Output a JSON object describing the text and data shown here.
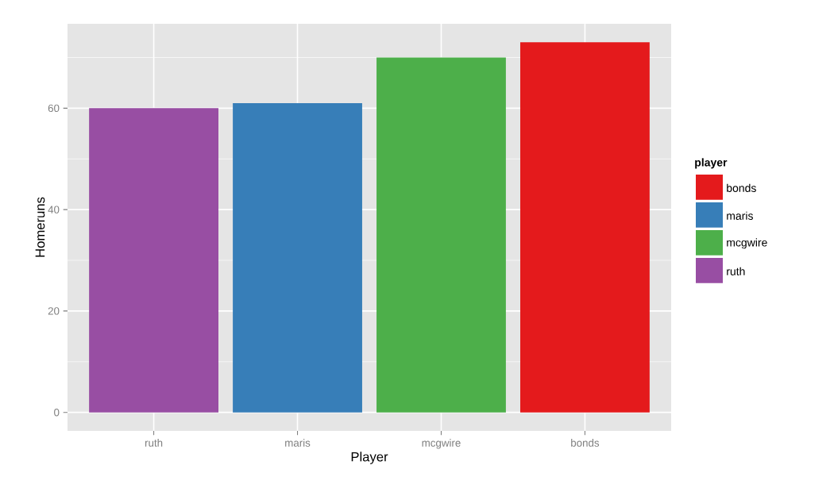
{
  "chart_data": {
    "type": "bar",
    "xlabel": "Player",
    "ylabel": "Homeruns",
    "legend_title": "player",
    "categories": [
      "ruth",
      "maris",
      "mcgwire",
      "bonds"
    ],
    "series": [
      {
        "name": "bonds",
        "color": "#e41a1c",
        "values": [
          null,
          null,
          null,
          73
        ]
      },
      {
        "name": "maris",
        "color": "#377eb8",
        "values": [
          null,
          61,
          null,
          null
        ]
      },
      {
        "name": "mcgwire",
        "color": "#4daf4a",
        "values": [
          null,
          null,
          70,
          null
        ]
      },
      {
        "name": "ruth",
        "color": "#984ea3",
        "values": [
          60,
          null,
          null,
          null
        ]
      }
    ],
    "ylim": [
      -3.65,
      76.65
    ],
    "yticks": [
      0,
      20,
      40,
      60
    ],
    "grid": true,
    "legend": "right"
  }
}
